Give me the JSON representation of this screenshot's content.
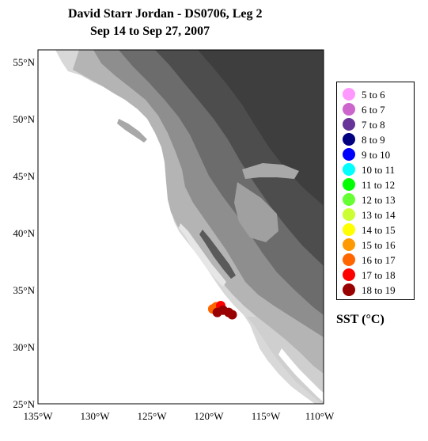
{
  "title": {
    "line1": "David Starr Jordan - DS0706, Leg 2",
    "line2": "Sep 14 to Sep 27, 2007"
  },
  "map": {
    "lon_range": [
      -135,
      -110
    ],
    "lat_range": [
      25,
      56
    ],
    "x_tick_labels": [
      "135°W",
      "130°W",
      "125°W",
      "120°W",
      "115°W",
      "110°W"
    ],
    "y_tick_labels": [
      "25°N",
      "30°N",
      "35°N",
      "40°N",
      "45°N",
      "50°N",
      "55°N"
    ],
    "ocean_color": "#ffffff",
    "land_colors": [
      "#d8d8d8",
      "#b4b4b4",
      "#8e8e8e",
      "#6c6c6c",
      "#4d4d4d"
    ],
    "stations": [
      {
        "lon": -119.7,
        "lat": 33.3,
        "sst_class": "16 to 17"
      },
      {
        "lon": -119.4,
        "lat": 33.5,
        "sst_class": "16 to 17"
      },
      {
        "lon": -119.0,
        "lat": 33.6,
        "sst_class": "17 to 18"
      },
      {
        "lon": -119.3,
        "lat": 33.0,
        "sst_class": "18 to 19"
      },
      {
        "lon": -118.8,
        "lat": 33.2,
        "sst_class": "18 to 19"
      },
      {
        "lon": -118.3,
        "lat": 33.0,
        "sst_class": "18 to 19"
      },
      {
        "lon": -118.0,
        "lat": 32.8,
        "sst_class": "18 to 19"
      }
    ]
  },
  "legend": {
    "items": [
      {
        "label": "5  to  6",
        "color": "#ff99ff"
      },
      {
        "label": "6  to  7",
        "color": "#cc66cc"
      },
      {
        "label": "7  to  8",
        "color": "#663399"
      },
      {
        "label": "8  to  9",
        "color": "#000080"
      },
      {
        "label": "9  to  10",
        "color": "#0000ff"
      },
      {
        "label": "10  to  11",
        "color": "#00ffff"
      },
      {
        "label": "11  to  12",
        "color": "#00ff00"
      },
      {
        "label": "12  to  13",
        "color": "#66ff33"
      },
      {
        "label": "13  to  14",
        "color": "#ccff33"
      },
      {
        "label": "14  to  15",
        "color": "#ffff00"
      },
      {
        "label": "15  to  16",
        "color": "#ff9900"
      },
      {
        "label": "16  to  17",
        "color": "#ff6600"
      },
      {
        "label": "17  to  18",
        "color": "#ff0000"
      },
      {
        "label": "18  to  19",
        "color": "#990000"
      }
    ],
    "unit_label": "SST (°C)"
  }
}
